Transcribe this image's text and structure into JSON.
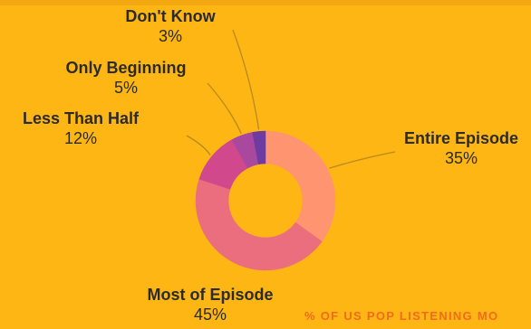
{
  "chart_data": {
    "type": "pie",
    "style": "donut",
    "categories": [
      "Entire Episode",
      "Most of Episode",
      "Less Than Half",
      "Only Beginning",
      "Don't Know"
    ],
    "values": [
      35,
      45,
      12,
      5,
      3
    ],
    "value_labels": [
      "35%",
      "45%",
      "12%",
      "5%",
      "3%"
    ],
    "colors": [
      "#FF9470",
      "#EA6E7D",
      "#D2488D",
      "#A8489E",
      "#6E3BA0"
    ],
    "leader_color": "#B88A1C"
  },
  "footer": {
    "caption": "% OF US POP LISTENING MO"
  },
  "colors": {
    "background": "#FDB614",
    "footer_text": "#F26B1D"
  }
}
